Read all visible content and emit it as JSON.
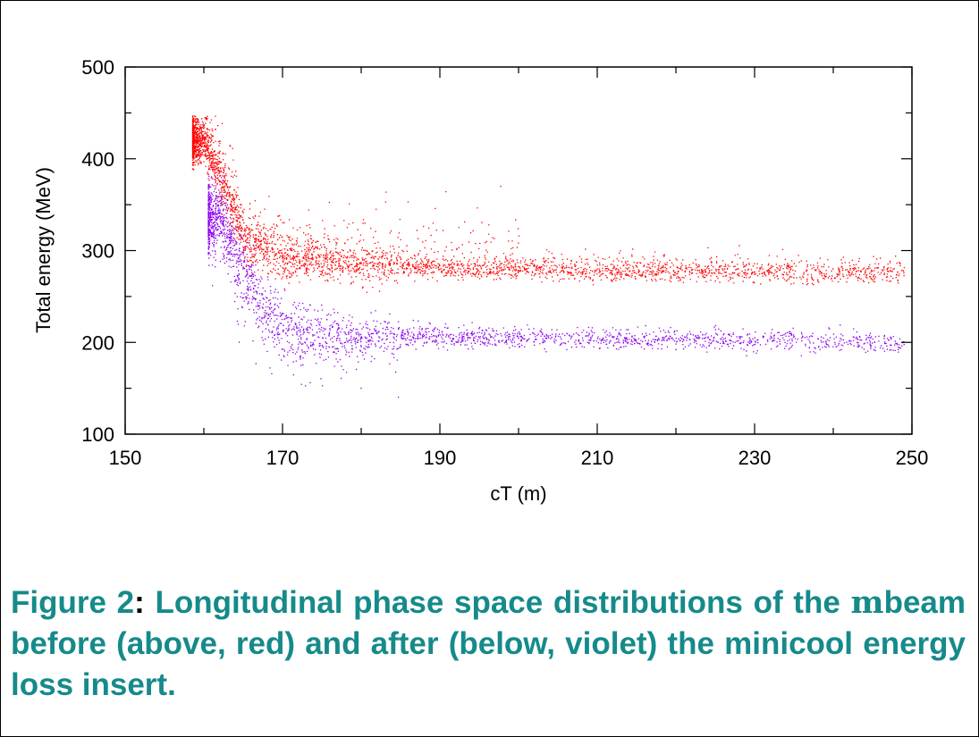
{
  "chart_data": {
    "type": "scatter",
    "xlabel": "cT (m)",
    "ylabel": "Total energy (MeV)",
    "xlim": [
      150,
      250
    ],
    "ylim": [
      100,
      500
    ],
    "xticks": [
      150,
      170,
      190,
      210,
      230,
      250
    ],
    "yticks": [
      100,
      200,
      300,
      400,
      500
    ],
    "grid": false,
    "series": [
      {
        "color": "#ff0000",
        "description_points": [
          {
            "x": 160,
            "y": 420
          },
          {
            "x": 162,
            "y": 380
          },
          {
            "x": 165,
            "y": 310
          },
          {
            "x": 170,
            "y": 290
          },
          {
            "x": 180,
            "y": 285
          },
          {
            "x": 190,
            "y": 282
          },
          {
            "x": 210,
            "y": 278
          },
          {
            "x": 230,
            "y": 277
          },
          {
            "x": 248,
            "y": 275
          }
        ]
      },
      {
        "color": "#8b00ee",
        "description_points": [
          {
            "x": 162,
            "y": 340
          },
          {
            "x": 165,
            "y": 280
          },
          {
            "x": 168,
            "y": 235
          },
          {
            "x": 172,
            "y": 210
          },
          {
            "x": 180,
            "y": 208
          },
          {
            "x": 190,
            "y": 207
          },
          {
            "x": 210,
            "y": 204
          },
          {
            "x": 230,
            "y": 203
          },
          {
            "x": 248,
            "y": 200
          }
        ]
      }
    ]
  },
  "caption": {
    "figure_label": "Figure 2",
    "colon": ":",
    "text_part1": " Longitudinal phase space distributions of the ",
    "symbol": "m",
    "text_part2": "beam before (above, red) and after (below, violet) the minicool energy loss insert."
  }
}
